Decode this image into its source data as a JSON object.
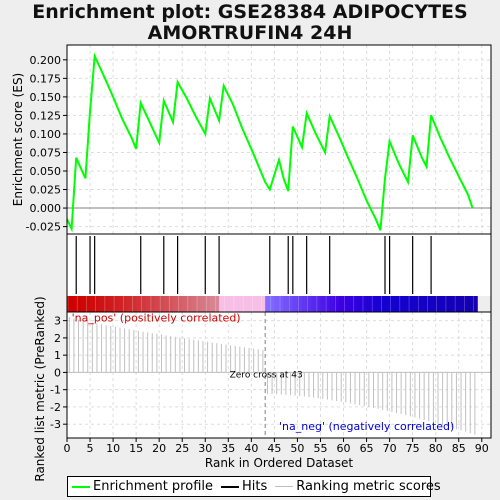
{
  "title_line1": "Enrichment plot: GSE28384 ADIPOCYTES",
  "title_line2": "AMORTRUFIN4 24H",
  "legend": {
    "items": [
      {
        "label": "Enrichment profile",
        "color": "#00ff00"
      },
      {
        "label": "Hits",
        "color": "#000000"
      },
      {
        "label": "Ranking metric scores",
        "color": "#c0c0c0"
      }
    ]
  },
  "chart_data": [
    {
      "type": "line",
      "ylabel": "Enrichment score (ES)",
      "ylim": [
        -0.035,
        0.22
      ],
      "yticks": [
        "-0.025",
        "0.000",
        "0.025",
        "0.050",
        "0.075",
        "0.100",
        "0.125",
        "0.150",
        "0.175",
        "0.200"
      ],
      "ytick_values": [
        -0.025,
        0,
        0.025,
        0.05,
        0.075,
        0.1,
        0.125,
        0.15,
        0.175,
        0.2
      ],
      "xlim": [
        0,
        92
      ],
      "grid": true,
      "color": "#00ff00",
      "x": [
        0,
        1,
        2,
        4,
        5,
        6,
        8,
        10,
        12,
        14,
        15,
        16,
        18,
        20,
        21,
        23,
        24,
        26,
        28,
        30,
        31,
        33,
        34,
        36,
        38,
        40,
        42,
        43,
        44,
        46,
        47,
        48,
        49,
        51,
        52,
        54,
        56,
        57,
        59,
        61,
        63,
        65,
        67,
        68,
        69,
        70,
        72,
        74,
        75,
        77,
        78,
        79,
        81,
        83,
        85,
        87,
        88
      ],
      "y": [
        -0.015,
        -0.028,
        0.068,
        0.04,
        0.13,
        0.205,
        0.178,
        0.15,
        0.12,
        0.095,
        0.08,
        0.142,
        0.115,
        0.088,
        0.145,
        0.116,
        0.17,
        0.148,
        0.123,
        0.1,
        0.148,
        0.118,
        0.165,
        0.14,
        0.108,
        0.08,
        0.05,
        0.035,
        0.025,
        0.065,
        0.04,
        0.023,
        0.11,
        0.082,
        0.128,
        0.1,
        0.075,
        0.124,
        0.097,
        0.068,
        0.04,
        0.01,
        -0.015,
        -0.03,
        0.04,
        0.09,
        0.06,
        0.035,
        0.098,
        0.068,
        0.056,
        0.125,
        0.095,
        0.068,
        0.043,
        0.018,
        0.0
      ]
    },
    {
      "type": "hits",
      "hit_positions": [
        2,
        5,
        6,
        16,
        21,
        24,
        30,
        33,
        44,
        48,
        49,
        52,
        57,
        69,
        70,
        75,
        79
      ]
    },
    {
      "type": "bar",
      "xlabel": "Rank in Ordered Dataset",
      "ylabel": "Ranked list metric (PreRanked)",
      "ylim": [
        -3.8,
        3.5
      ],
      "yticks": [
        "3",
        "2",
        "1",
        "0",
        "-1",
        "-2",
        "-3"
      ],
      "ytick_values": [
        3,
        2,
        1,
        0,
        -1,
        -2,
        -3
      ],
      "xticks": [
        "0",
        "5",
        "10",
        "15",
        "20",
        "25",
        "30",
        "35",
        "40",
        "45",
        "50",
        "55",
        "60",
        "65",
        "70",
        "75",
        "80",
        "85",
        "90"
      ],
      "xtick_values": [
        0,
        5,
        10,
        15,
        20,
        25,
        30,
        35,
        40,
        45,
        50,
        55,
        60,
        65,
        70,
        75,
        80,
        85,
        90
      ],
      "n_ranks": 89,
      "first_value": 3.2,
      "positive_end_value": 1.3,
      "negative_start_value": -1.25,
      "last_value": -3.6,
      "zero_cross_rank": 43,
      "zero_cross_label": "Zero cross at 43",
      "pos_label": "'na_pos' (positively correlated)",
      "neg_label": "'na_neg' (negatively correlated)",
      "pos_color": "#cc0000",
      "neg_color": "#0000cc"
    }
  ]
}
